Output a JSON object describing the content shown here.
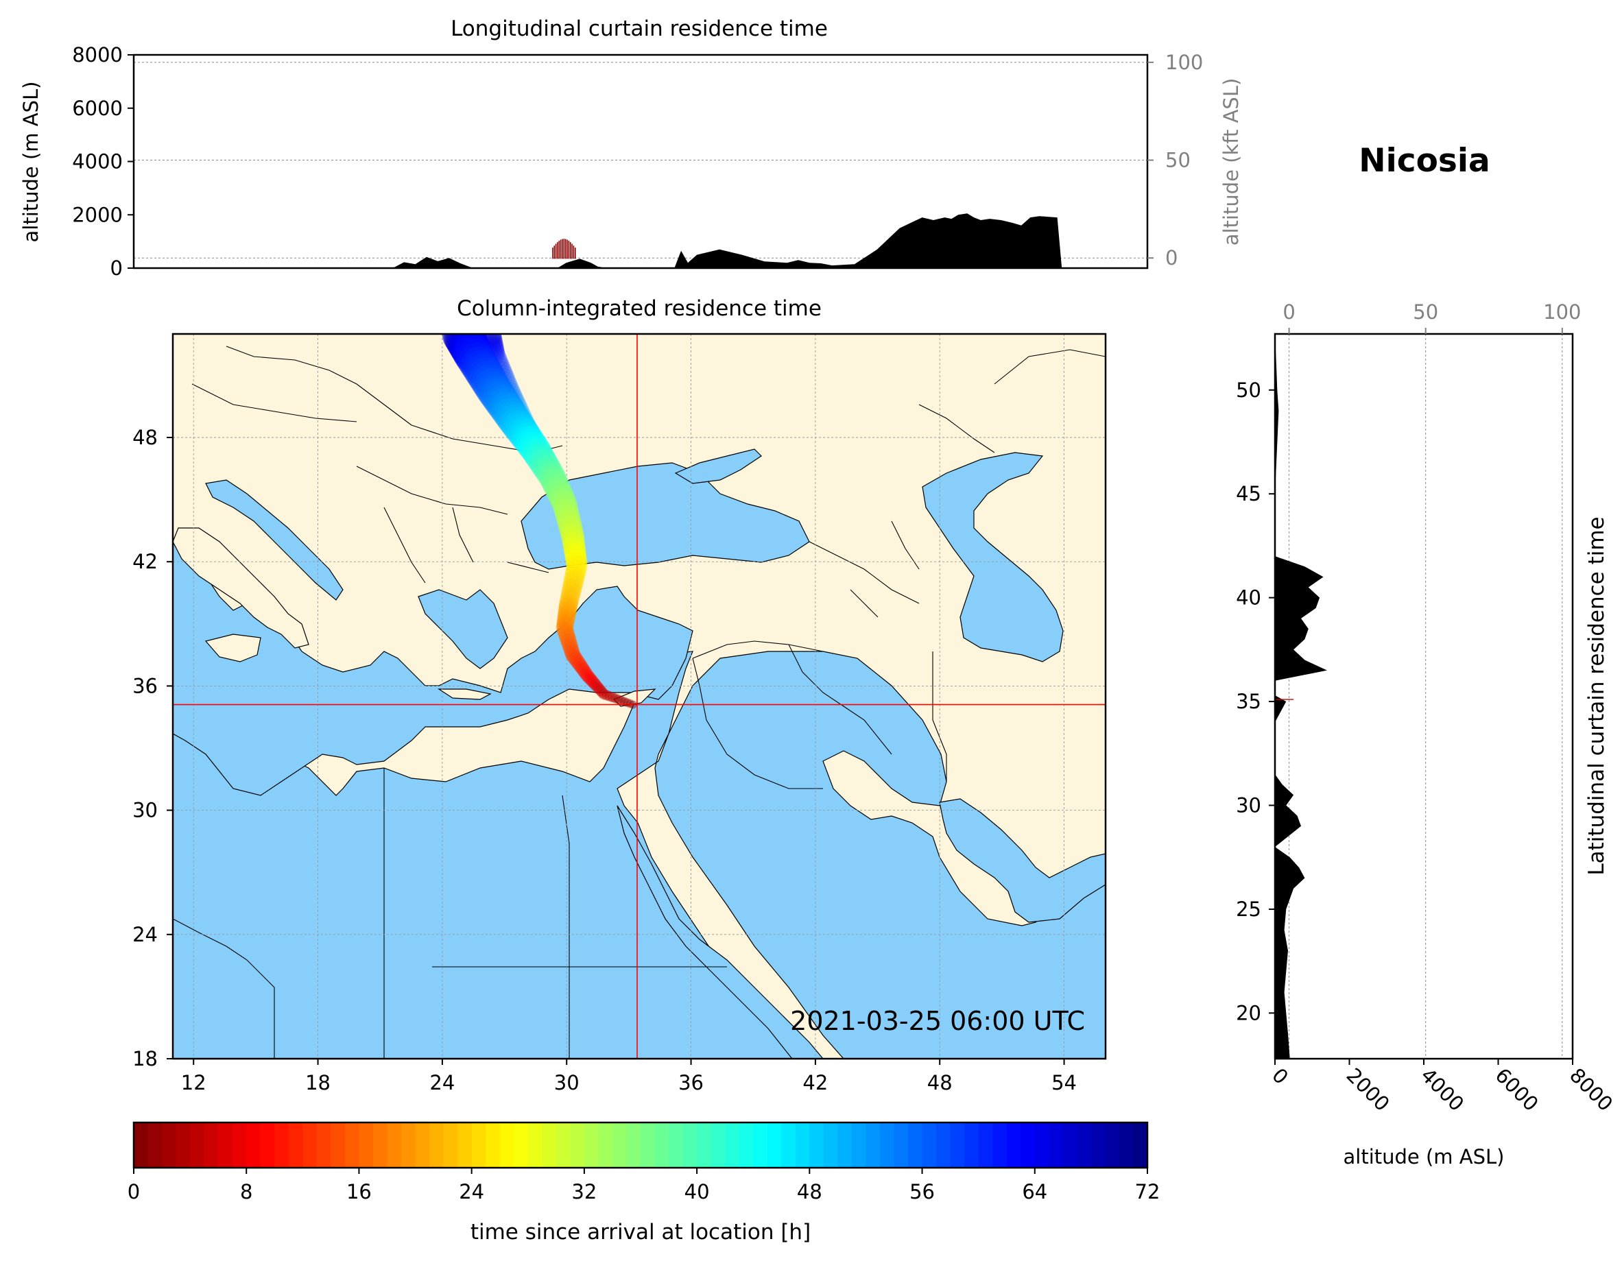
{
  "location_title": "Nicosia",
  "timestamp": "2021-03-25 06:00 UTC",
  "colors": {
    "land": "#fdf5dc",
    "sea": "#87cefa",
    "terrain": "#000000",
    "crosshair": "#ff0000",
    "border": "#000000"
  },
  "chart_data": [
    {
      "type": "area",
      "title": "Longitudinal curtain residence time",
      "ylabel": "altitude (m ASL)",
      "ylim": [
        0,
        8000
      ],
      "yticks": [
        "0",
        "2000",
        "4000",
        "6000",
        "8000"
      ],
      "secondary_ylabel": "altitude (kft ASL)",
      "secondary_yticks": [
        "0",
        "50",
        "100"
      ],
      "secondary_ylim": [
        0,
        100
      ],
      "grid": true,
      "terrain_profile": {
        "x_longitude": [
          11,
          22.5,
          23,
          23.5,
          24,
          24.5,
          25,
          25.5,
          26,
          26.5,
          26.8,
          27,
          29.8,
          30.2,
          30.8,
          31.3,
          31.6,
          32,
          32.5,
          33,
          33.5,
          34,
          34.5,
          35,
          35.3,
          35.6,
          36,
          37,
          38,
          39,
          40,
          40.5,
          41,
          41.5,
          42,
          43,
          44,
          45,
          45.5,
          46,
          46.5,
          47,
          47.3,
          47.6,
          48,
          48.3,
          48.6,
          49,
          49.5,
          50,
          50.4,
          50.8,
          51.2,
          52,
          52.2,
          55
        ],
        "altitude_m": [
          0,
          0,
          220,
          150,
          420,
          260,
          380,
          180,
          20,
          0,
          0,
          0,
          0,
          200,
          350,
          200,
          60,
          0,
          0,
          0,
          0,
          0,
          0,
          0,
          650,
          200,
          500,
          700,
          500,
          250,
          200,
          300,
          200,
          180,
          100,
          150,
          700,
          1500,
          1700,
          1900,
          1800,
          1900,
          1850,
          2000,
          2050,
          1900,
          1800,
          1850,
          1800,
          1700,
          1600,
          1900,
          1950,
          1900,
          0,
          0
        ]
      },
      "plume_longitude_range": [
        29.6,
        30.6
      ],
      "plume_altitude_max_m": 1100
    },
    {
      "type": "heatmap",
      "title": "Column-integrated residence time",
      "xlabel": "",
      "ylabel": "",
      "xlim": [
        11,
        56
      ],
      "ylim": [
        18,
        53
      ],
      "xticks": [
        "12",
        "18",
        "24",
        "30",
        "36",
        "42",
        "48",
        "54"
      ],
      "yticks": [
        "18",
        "24",
        "30",
        "36",
        "42",
        "48"
      ],
      "release_location": {
        "longitude": 33.4,
        "latitude": 35.1
      },
      "trajectory": {
        "longitude": [
          33.2,
          31.8,
          31.0,
          30.3,
          29.9,
          30.1,
          30.5,
          30.3,
          29.9,
          29.3,
          28.5,
          27.5,
          26.5,
          25.5,
          25.0
        ],
        "latitude": [
          35.1,
          35.6,
          36.5,
          37.5,
          38.8,
          40.0,
          41.8,
          43.2,
          44.8,
          46.1,
          47.4,
          48.8,
          50.3,
          52.0,
          53.0
        ],
        "time_since_arrival_h": [
          0,
          5,
          10,
          14,
          18,
          22,
          26,
          30,
          34,
          38,
          44,
          50,
          56,
          62,
          68
        ]
      }
    },
    {
      "type": "area",
      "title": "Latitudinal curtain residence time",
      "xlabel": "altitude (m ASL)",
      "xlim": [
        0,
        8000
      ],
      "xticks": [
        "0",
        "2000",
        "4000",
        "6000",
        "8000"
      ],
      "secondary_xticks": [
        "0",
        "50",
        "100"
      ],
      "yticks": [
        "20",
        "25",
        "30",
        "35",
        "40",
        "45",
        "50"
      ],
      "ylim": [
        17.8,
        52.7
      ],
      "grid": true,
      "terrain_profile": {
        "latitude": [
          17.8,
          19,
          20,
          21,
          22,
          23,
          24,
          25,
          26,
          26.5,
          27,
          27.5,
          28,
          29,
          29.5,
          30,
          30.5,
          31,
          31.5,
          32,
          34,
          35,
          35.3,
          35.6,
          36,
          36.5,
          37,
          37.5,
          38,
          38.5,
          39,
          39.5,
          40,
          40.5,
          41,
          41.5,
          42,
          43,
          45,
          47,
          49,
          50,
          51,
          52.7
        ],
        "altitude_m": [
          400,
          350,
          300,
          250,
          300,
          350,
          250,
          300,
          500,
          800,
          650,
          400,
          0,
          700,
          600,
          300,
          500,
          200,
          0,
          0,
          0,
          300,
          0,
          0,
          0,
          1400,
          800,
          500,
          800,
          900,
          700,
          1100,
          1200,
          900,
          1300,
          800,
          0,
          0,
          0,
          50,
          100,
          60,
          40,
          0
        ]
      },
      "plume_latitude": 35.1
    },
    {
      "type": "heatmap",
      "xlabel": "time since arrival at location [h]",
      "xlim": [
        0,
        72
      ],
      "xticks": [
        "0",
        "8",
        "16",
        "24",
        "32",
        "40",
        "48",
        "56",
        "64",
        "72"
      ],
      "colormap": "jet_r"
    }
  ]
}
